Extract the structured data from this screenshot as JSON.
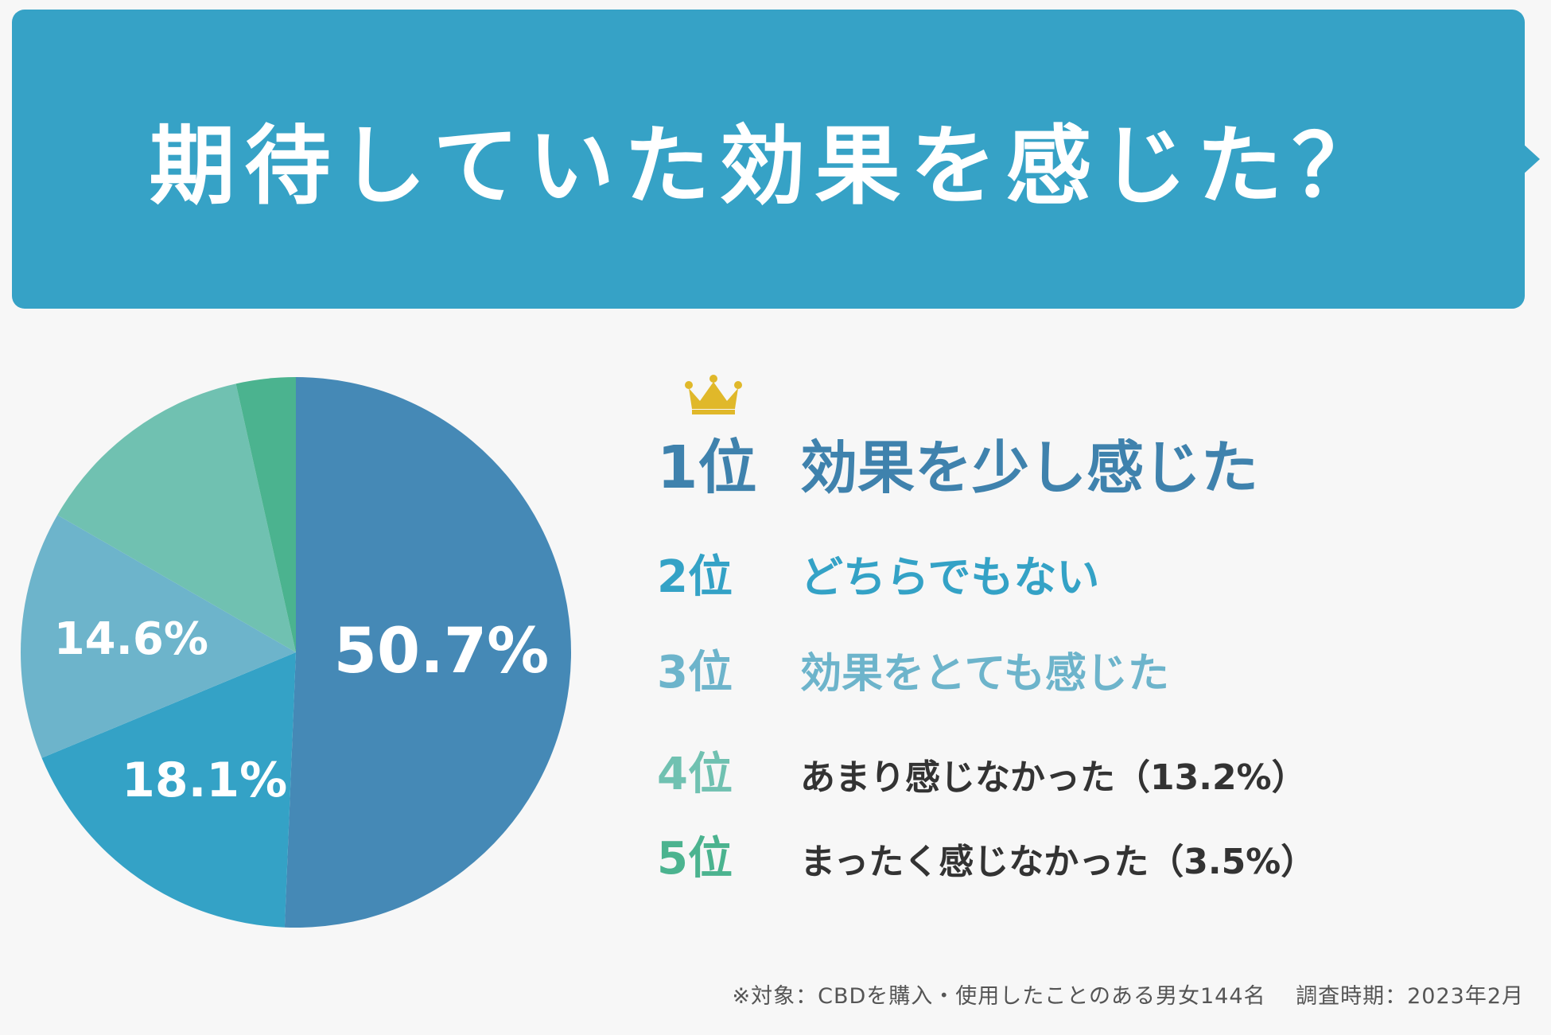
{
  "header": {
    "title": "期待していた効果を感じた？",
    "color": "#36a2c6"
  },
  "chart_data": {
    "type": "pie",
    "start": "top, clockwise",
    "slices": [
      {
        "rank": "1位",
        "label": "効果を少し感じた",
        "value": 50.7,
        "display": "50.7%",
        "color": "#4589b6"
      },
      {
        "rank": "2位",
        "label": "どちらでもない",
        "value": 18.1,
        "display": "18.1%",
        "color": "#34a2c6"
      },
      {
        "rank": "3位",
        "label": "効果をとても感じた",
        "value": 14.6,
        "display": "14.6%",
        "color": "#6db4cb"
      },
      {
        "rank": "4位",
        "label": "あまり感じなかった（13.2%）",
        "value": 13.2,
        "display": "",
        "color": "#70c1b1"
      },
      {
        "rank": "5位",
        "label": "まったく感じなかった（3.5%）",
        "value": 3.5,
        "display": "",
        "color": "#4bb38f"
      }
    ]
  },
  "ranking": {
    "items": [
      {
        "rank": "1位",
        "label": "効果を少し感じた",
        "num_color": "#3f82ad",
        "label_color": "#3f82ad"
      },
      {
        "rank": "2位",
        "label": "どちらでもない",
        "num_color": "#34a2c6",
        "label_color": "#34a2c6"
      },
      {
        "rank": "3位",
        "label": "効果をとても感じた",
        "num_color": "#6db4cb",
        "label_color": "#6db4cb"
      },
      {
        "rank": "4位",
        "label": "あまり感じなかった（13.2%）",
        "num_color": "#70c1b1",
        "label_color": "#333333"
      },
      {
        "rank": "5位",
        "label": "まったく感じなかった（3.5%）",
        "num_color": "#4bb38f",
        "label_color": "#333333"
      }
    ],
    "crown_color": "#e0b82a"
  },
  "footnote": "※対象：CBDを購入・使用したことのある男女144名　 調査時期：2023年2月"
}
